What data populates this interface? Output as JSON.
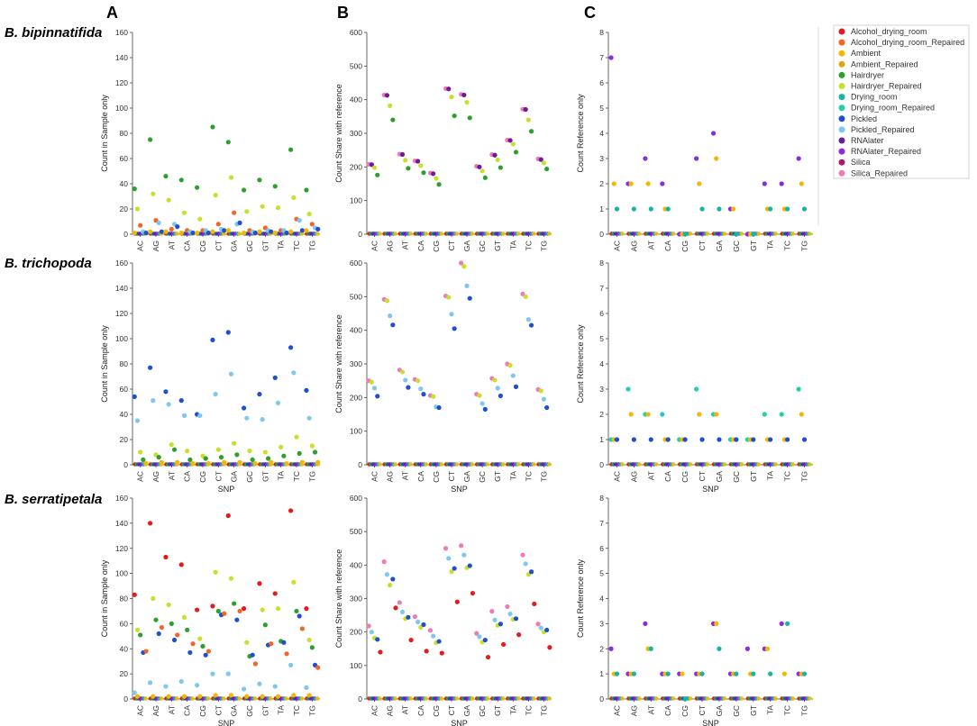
{
  "figure": {
    "column_labels": [
      "A",
      "B",
      "C"
    ],
    "row_labels": [
      "B. bipinnatifida",
      "B. trichopoda",
      "B. serratipetala"
    ]
  },
  "legend": [
    {
      "name": "Alcohol_drying_room",
      "color": "#e41a1c"
    },
    {
      "name": "Alcohol_drying_room_Repaired",
      "color": "#f26522"
    },
    {
      "name": "Ambient",
      "color": "#f5b800"
    },
    {
      "name": "Ambient_Repaired",
      "color": "#d9a90f"
    },
    {
      "name": "Hairdryer",
      "color": "#2ca02c"
    },
    {
      "name": "Hairdryer_Repaired",
      "color": "#c8e02c"
    },
    {
      "name": "Drying_room",
      "color": "#17b3a3"
    },
    {
      "name": "Drying_room_Repaired",
      "color": "#20d0b0"
    },
    {
      "name": "Pickled",
      "color": "#1f4fcf"
    },
    {
      "name": "Pickled_Repaired",
      "color": "#7ec8f0"
    },
    {
      "name": "RNAlater",
      "color": "#6a1b9a"
    },
    {
      "name": "RNAlater_Repaired",
      "color": "#8a2be2"
    },
    {
      "name": "Silica",
      "color": "#b0186e"
    },
    {
      "name": "Silica_Repaired",
      "color": "#f07ab8"
    }
  ],
  "chart_data": [
    {
      "type": "scatter",
      "panel": "A",
      "species": "B. bipinnatifida",
      "title": "",
      "xlabel": "",
      "ylabel": "Count in Sample only",
      "ylim": [
        0,
        160
      ],
      "yticks": [
        0,
        20,
        40,
        60,
        80,
        100,
        120,
        140,
        160
      ],
      "categories": [
        "AC",
        "AG",
        "AT",
        "CA",
        "CG",
        "CT",
        "GA",
        "GC",
        "GT",
        "TA",
        "TC",
        "TG"
      ],
      "series": [
        {
          "name": "Hairdryer",
          "values": [
            36,
            75,
            46,
            43,
            37,
            85,
            73,
            35,
            43,
            38,
            67,
            35
          ]
        },
        {
          "name": "Hairdryer_Repaired",
          "values": [
            20,
            32,
            27,
            17,
            12,
            31,
            45,
            18,
            22,
            21,
            29,
            16
          ]
        },
        {
          "name": "Alcohol_drying_room_Repaired",
          "values": [
            7,
            11,
            4,
            3,
            3,
            8,
            17,
            3,
            5,
            3,
            12,
            8
          ]
        },
        {
          "name": "Pickled_Repaired",
          "values": [
            2,
            9,
            8,
            2,
            3,
            4,
            8,
            2,
            3,
            3,
            11,
            5
          ]
        },
        {
          "name": "Pickled",
          "values": [
            1,
            2,
            6,
            1,
            1,
            3,
            9,
            1,
            2,
            1,
            3,
            4
          ]
        },
        {
          "name": "Ambient",
          "values": [
            1,
            2,
            2,
            1,
            1,
            2,
            3,
            1,
            2,
            1,
            2,
            3
          ]
        }
      ]
    },
    {
      "type": "scatter",
      "panel": "B",
      "species": "B. bipinnatifida",
      "title": "",
      "xlabel": "",
      "ylabel": "Count Share with reference",
      "ylim": [
        0,
        600
      ],
      "yticks": [
        0,
        100,
        200,
        300,
        400,
        500,
        600
      ],
      "categories": [
        "AC",
        "AG",
        "AT",
        "CA",
        "CG",
        "CT",
        "GA",
        "GC",
        "GT",
        "TA",
        "TC",
        "TG"
      ],
      "series": [
        {
          "name": "Silica_Repaired",
          "values": [
            208,
            414,
            238,
            218,
            182,
            433,
            416,
            202,
            237,
            280,
            372,
            224
          ]
        },
        {
          "name": "RNAlater",
          "values": [
            207,
            413,
            237,
            217,
            180,
            432,
            414,
            200,
            235,
            279,
            371,
            222
          ]
        },
        {
          "name": "Hairdryer_Repaired",
          "values": [
            198,
            382,
            220,
            204,
            166,
            408,
            392,
            188,
            221,
            268,
            340,
            212
          ]
        },
        {
          "name": "Hairdryer",
          "values": [
            176,
            340,
            196,
            183,
            148,
            352,
            346,
            168,
            198,
            244,
            306,
            194
          ]
        }
      ]
    },
    {
      "type": "scatter",
      "panel": "C",
      "species": "B. bipinnatifida",
      "title": "",
      "xlabel": "",
      "ylabel": "Count Reference only",
      "ylim": [
        0,
        8
      ],
      "yticks": [
        0,
        1,
        2,
        3,
        4,
        5,
        6,
        7,
        8
      ],
      "categories": [
        "AC",
        "AG",
        "AT",
        "CA",
        "CG",
        "CT",
        "GA",
        "GC",
        "GT",
        "TA",
        "TC",
        "TG"
      ],
      "series": [
        {
          "name": "RNAlater_Repaired",
          "values": [
            7,
            2,
            3,
            2,
            0,
            3,
            4,
            1,
            0,
            2,
            2,
            3
          ]
        },
        {
          "name": "Ambient",
          "values": [
            2,
            2,
            2,
            1,
            0,
            2,
            3,
            1,
            0,
            1,
            1,
            2
          ]
        },
        {
          "name": "Drying_room",
          "values": [
            1,
            1,
            1,
            1,
            0,
            1,
            1,
            0,
            0,
            1,
            1,
            1
          ]
        }
      ]
    },
    {
      "type": "scatter",
      "panel": "A",
      "species": "B. trichopoda",
      "title": "",
      "xlabel": "SNP",
      "ylabel": "Count in Sample only",
      "ylim": [
        0,
        160
      ],
      "yticks": [
        0,
        20,
        40,
        60,
        80,
        100,
        120,
        140,
        160
      ],
      "categories": [
        "AC",
        "AG",
        "AT",
        "CA",
        "CG",
        "CT",
        "GA",
        "GC",
        "GT",
        "TA",
        "TC",
        "TG"
      ],
      "series": [
        {
          "name": "Pickled",
          "values": [
            54,
            77,
            58,
            51,
            40,
            99,
            105,
            45,
            56,
            69,
            93,
            59
          ]
        },
        {
          "name": "Pickled_Repaired",
          "values": [
            35,
            51,
            48,
            39,
            39,
            56,
            72,
            37,
            36,
            49,
            73,
            37
          ]
        },
        {
          "name": "Hairdryer_Repaired",
          "values": [
            10,
            8,
            16,
            11,
            7,
            12,
            17,
            11,
            10,
            14,
            22,
            15
          ]
        },
        {
          "name": "Hairdryer",
          "values": [
            4,
            6,
            12,
            4,
            5,
            6,
            8,
            4,
            5,
            7,
            9,
            10
          ]
        },
        {
          "name": "Ambient",
          "values": [
            1,
            2,
            2,
            1,
            1,
            2,
            2,
            1,
            2,
            1,
            2,
            2
          ]
        }
      ]
    },
    {
      "type": "scatter",
      "panel": "B",
      "species": "B. trichopoda",
      "title": "",
      "xlabel": "SNP",
      "ylabel": "Count Share with reference",
      "ylim": [
        0,
        600
      ],
      "yticks": [
        0,
        100,
        200,
        300,
        400,
        500,
        600
      ],
      "categories": [
        "AC",
        "AG",
        "AT",
        "CA",
        "CG",
        "CT",
        "GA",
        "GC",
        "GT",
        "TA",
        "TC",
        "TG"
      ],
      "series": [
        {
          "name": "Silica_Repaired",
          "values": [
            250,
            492,
            282,
            254,
            206,
            502,
            600,
            210,
            257,
            300,
            508,
            224
          ]
        },
        {
          "name": "Hairdryer_Repaired",
          "values": [
            246,
            488,
            276,
            250,
            203,
            498,
            590,
            206,
            252,
            296,
            500,
            220
          ]
        },
        {
          "name": "Pickled_Repaired",
          "values": [
            228,
            443,
            252,
            226,
            172,
            448,
            532,
            182,
            228,
            265,
            432,
            195
          ]
        },
        {
          "name": "Pickled",
          "values": [
            204,
            416,
            230,
            210,
            170,
            405,
            495,
            165,
            205,
            232,
            415,
            170
          ]
        }
      ]
    },
    {
      "type": "scatter",
      "panel": "C",
      "species": "B. trichopoda",
      "title": "",
      "xlabel": "SNP",
      "ylabel": "Count Reference only",
      "ylim": [
        0,
        8
      ],
      "yticks": [
        0,
        1,
        2,
        3,
        4,
        5,
        6,
        7,
        8
      ],
      "categories": [
        "AC",
        "AG",
        "AT",
        "CA",
        "CG",
        "CT",
        "GA",
        "GC",
        "GT",
        "TA",
        "TC",
        "TG"
      ],
      "series": [
        {
          "name": "Drying_room_Repaired",
          "values": [
            1,
            3,
            2,
            2,
            1,
            3,
            2,
            1,
            1,
            2,
            2,
            3
          ]
        },
        {
          "name": "Ambient",
          "values": [
            1,
            2,
            2,
            1,
            1,
            2,
            2,
            1,
            1,
            1,
            1,
            2
          ]
        },
        {
          "name": "Pickled",
          "values": [
            1,
            1,
            1,
            1,
            1,
            1,
            1,
            1,
            1,
            1,
            1,
            1
          ]
        }
      ]
    },
    {
      "type": "scatter",
      "panel": "A",
      "species": "B. serratipetala",
      "title": "",
      "xlabel": "SNP",
      "ylabel": "Count in Sample only",
      "ylim": [
        0,
        160
      ],
      "yticks": [
        0,
        20,
        40,
        60,
        80,
        100,
        120,
        140,
        160
      ],
      "categories": [
        "AC",
        "AG",
        "AT",
        "CA",
        "CG",
        "CT",
        "GA",
        "GC",
        "GT",
        "TA",
        "TC",
        "TG"
      ],
      "series": [
        {
          "name": "Alcohol_drying_room",
          "values": [
            83,
            140,
            113,
            107,
            71,
            74,
            146,
            72,
            92,
            84,
            150,
            72
          ]
        },
        {
          "name": "Hairdryer_Repaired",
          "values": [
            55,
            80,
            75,
            65,
            48,
            101,
            96,
            45,
            71,
            72,
            93,
            47
          ]
        },
        {
          "name": "Hairdryer",
          "values": [
            51,
            63,
            60,
            55,
            42,
            70,
            76,
            34,
            59,
            46,
            70,
            41
          ]
        },
        {
          "name": "Pickled",
          "values": [
            37,
            52,
            47,
            37,
            35,
            67,
            63,
            35,
            43,
            45,
            66,
            27
          ]
        },
        {
          "name": "Alcohol_drying_room_Repaired",
          "values": [
            38,
            57,
            51,
            44,
            38,
            68,
            70,
            28,
            44,
            36,
            56,
            25
          ]
        },
        {
          "name": "Pickled_Repaired",
          "values": [
            5,
            13,
            10,
            14,
            11,
            20,
            20,
            8,
            12,
            10,
            27,
            9
          ]
        },
        {
          "name": "Ambient",
          "values": [
            2,
            2,
            2,
            2,
            2,
            3,
            3,
            2,
            2,
            2,
            3,
            3
          ]
        }
      ]
    },
    {
      "type": "scatter",
      "panel": "B",
      "species": "B. serratipetala",
      "title": "",
      "xlabel": "SNP",
      "ylabel": "Count Share with reference",
      "ylim": [
        0,
        600
      ],
      "yticks": [
        0,
        100,
        200,
        300,
        400,
        500,
        600
      ],
      "categories": [
        "AC",
        "AG",
        "AT",
        "CA",
        "CG",
        "CT",
        "GA",
        "GC",
        "GT",
        "TA",
        "TC",
        "TG"
      ],
      "series": [
        {
          "name": "Silica_Repaired",
          "values": [
            218,
            410,
            288,
            246,
            205,
            450,
            458,
            196,
            262,
            276,
            430,
            224
          ]
        },
        {
          "name": "Pickled_Repaired",
          "values": [
            200,
            372,
            260,
            230,
            188,
            420,
            430,
            186,
            236,
            254,
            404,
            212
          ]
        },
        {
          "name": "Hairdryer_Repaired",
          "values": [
            182,
            340,
            240,
            214,
            168,
            380,
            392,
            170,
            220,
            238,
            372,
            200
          ]
        },
        {
          "name": "Pickled",
          "values": [
            178,
            358,
            244,
            222,
            172,
            390,
            398,
            176,
            224,
            240,
            380,
            206
          ]
        },
        {
          "name": "Alcohol_drying_room",
          "values": [
            140,
            272,
            176,
            143,
            137,
            290,
            316,
            125,
            163,
            192,
            284,
            154
          ]
        }
      ]
    },
    {
      "type": "scatter",
      "panel": "C",
      "species": "B. serratipetala",
      "title": "",
      "xlabel": "SNP",
      "ylabel": "Count Reference only",
      "ylim": [
        0,
        8
      ],
      "yticks": [
        0,
        1,
        2,
        3,
        4,
        5,
        6,
        7,
        8
      ],
      "categories": [
        "AC",
        "AG",
        "AT",
        "CA",
        "CG",
        "CT",
        "GA",
        "GC",
        "GT",
        "TA",
        "TC",
        "TG"
      ],
      "series": [
        {
          "name": "RNAlater_Repaired",
          "values": [
            2,
            1,
            3,
            1,
            1,
            1,
            3,
            1,
            2,
            2,
            3,
            1
          ]
        },
        {
          "name": "Ambient",
          "values": [
            1,
            1,
            2,
            1,
            1,
            1,
            3,
            1,
            1,
            2,
            1,
            1
          ]
        },
        {
          "name": "Drying_room",
          "values": [
            1,
            1,
            2,
            1,
            0,
            1,
            2,
            1,
            1,
            1,
            3,
            1
          ]
        }
      ]
    }
  ]
}
